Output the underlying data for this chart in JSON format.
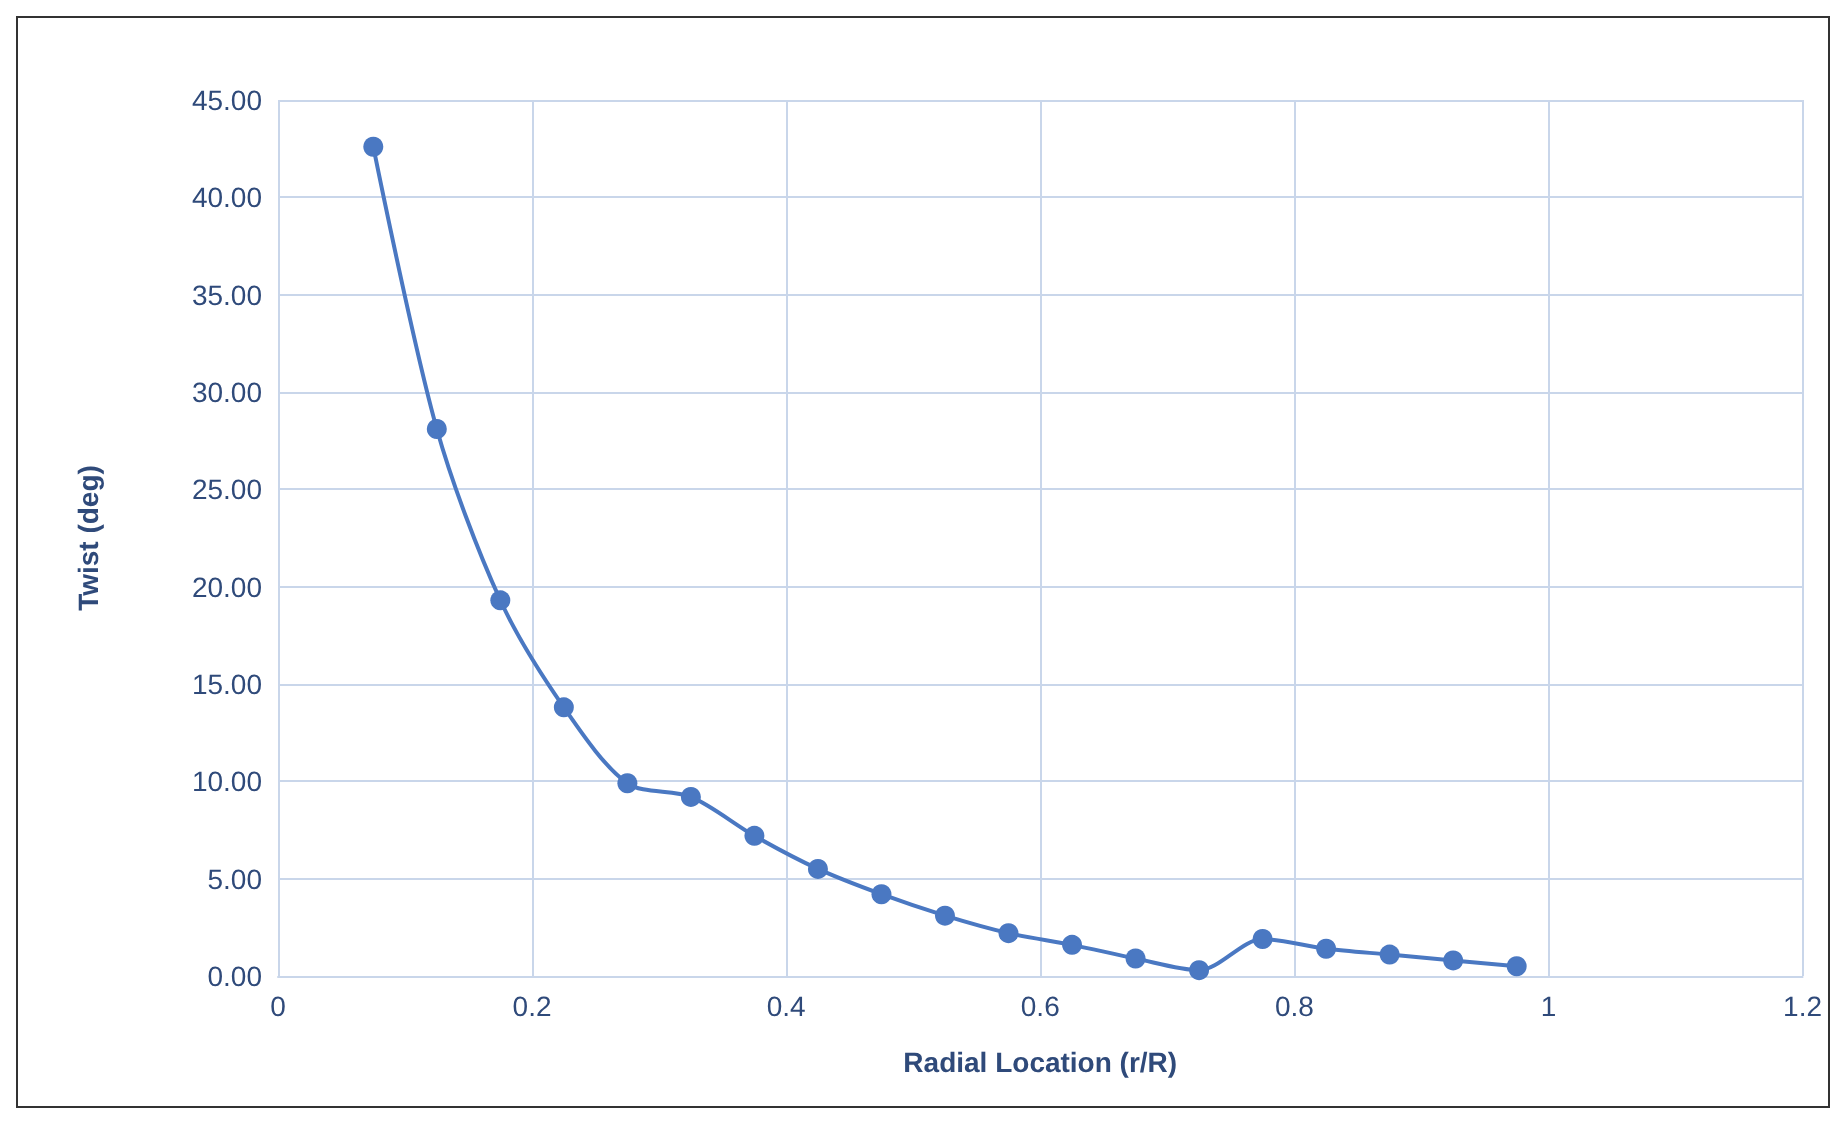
{
  "chart_data": {
    "type": "line",
    "xlabel": "Radial Location (r/R)",
    "ylabel": "Twist (deg)",
    "x": [
      0.075,
      0.125,
      0.175,
      0.225,
      0.275,
      0.325,
      0.375,
      0.425,
      0.475,
      0.525,
      0.575,
      0.625,
      0.675,
      0.725,
      0.775,
      0.825,
      0.875,
      0.925,
      0.975
    ],
    "series": [
      {
        "color": "#4a78c2",
        "values": [
          42.6,
          28.1,
          19.3,
          13.8,
          9.9,
          9.2,
          7.2,
          5.5,
          4.2,
          3.1,
          2.2,
          1.6,
          0.9,
          0.3,
          1.9,
          1.4,
          1.1,
          0.8,
          0.5
        ]
      }
    ],
    "xlim": [
      0,
      1.2
    ],
    "xticks": [
      0,
      0.2,
      0.4,
      0.6,
      0.8,
      1,
      1.2
    ],
    "ylim": [
      0,
      45
    ],
    "yticks": [
      {
        "value": 0,
        "label": "0.00"
      },
      {
        "value": 5,
        "label": "5.00"
      },
      {
        "value": 10,
        "label": "10.00"
      },
      {
        "value": 15,
        "label": "15.00"
      },
      {
        "value": 20,
        "label": "20.00"
      },
      {
        "value": 25,
        "label": "25.00"
      },
      {
        "value": 30,
        "label": "30.00"
      },
      {
        "value": 35,
        "label": "35.00"
      },
      {
        "value": 40,
        "label": "40.00"
      },
      {
        "value": 45,
        "label": "45.00"
      }
    ],
    "grid": true,
    "marker": "circle",
    "line_style": "solid"
  }
}
